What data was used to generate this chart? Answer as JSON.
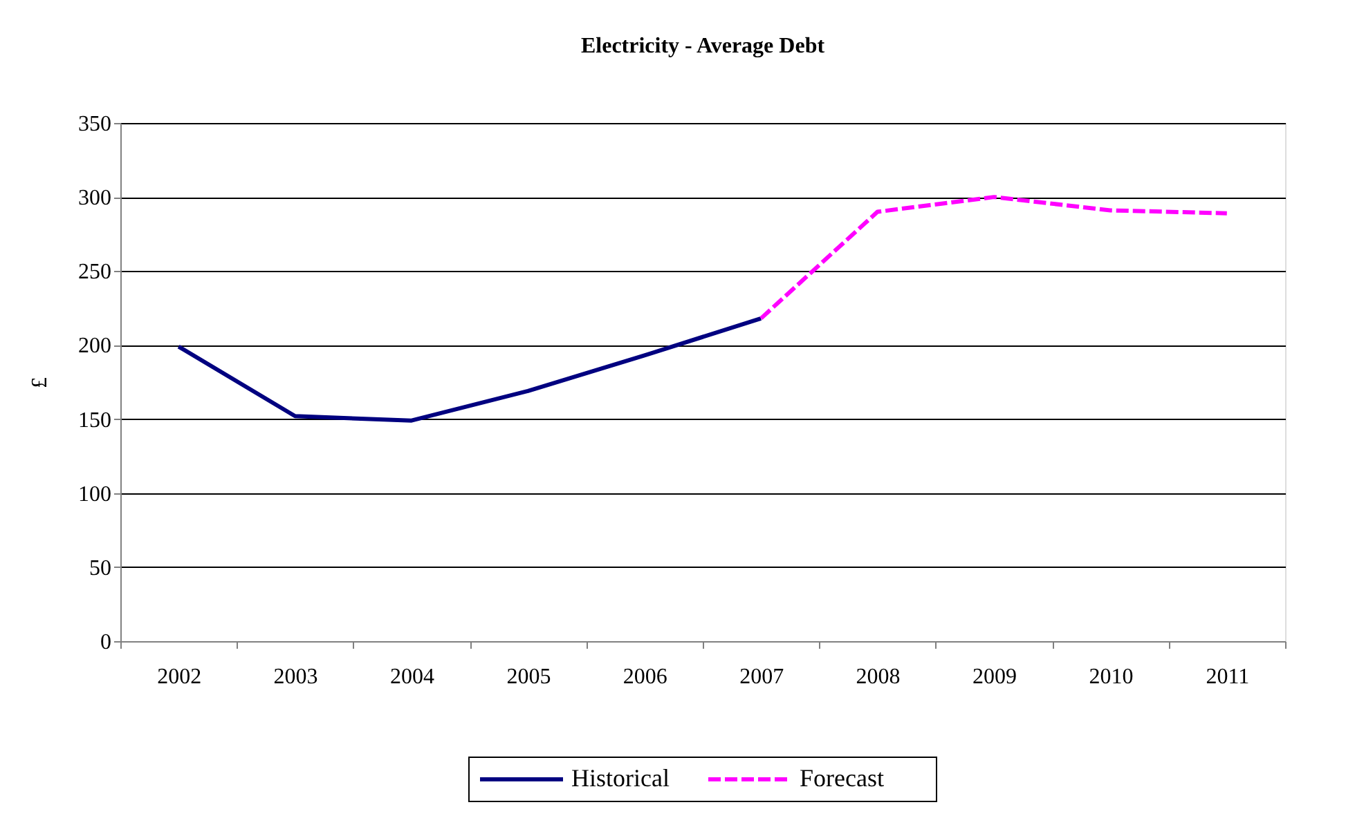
{
  "chart_data": {
    "type": "line",
    "title": "Electricity - Average Debt",
    "ylabel": "£",
    "categories": [
      "2002",
      "2003",
      "2004",
      "2005",
      "2006",
      "2007",
      "2008",
      "2009",
      "2010",
      "2011"
    ],
    "series": [
      {
        "name": "Historical",
        "color": "#000080",
        "line_style": "solid",
        "values": [
          199,
          152,
          149,
          169,
          193,
          218,
          null,
          null,
          null,
          null
        ]
      },
      {
        "name": "Forecast",
        "color": "#ff00ff",
        "line_style": "dashed",
        "values": [
          null,
          null,
          null,
          null,
          null,
          218,
          290,
          300,
          291,
          289
        ]
      }
    ],
    "ylim": [
      0,
      350
    ],
    "yticks": [
      0,
      50,
      100,
      150,
      200,
      250,
      300,
      350
    ],
    "grid": "y",
    "legend": "bottom",
    "marker": "none"
  }
}
